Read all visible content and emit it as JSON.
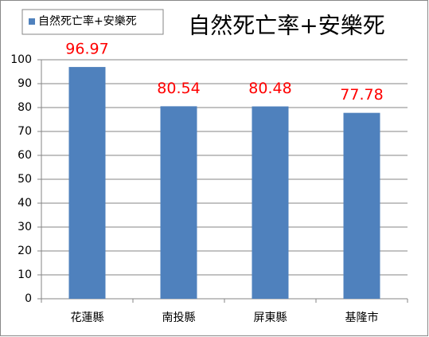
{
  "chart_data": {
    "type": "bar",
    "title": "自然死亡率+安樂死",
    "categories": [
      "花蓮縣",
      "南投縣",
      "屏東縣",
      "基隆市"
    ],
    "series": [
      {
        "name": "自然死亡率+安樂死",
        "color": "#4f81bd",
        "values": [
          96.97,
          80.54,
          80.48,
          77.78
        ]
      }
    ],
    "data_label_color": "#ff0000",
    "ylim": [
      0,
      100
    ],
    "yticks": [
      0,
      10,
      20,
      30,
      40,
      50,
      60,
      70,
      80,
      90,
      100
    ],
    "grid": true,
    "legend": "upper left"
  }
}
